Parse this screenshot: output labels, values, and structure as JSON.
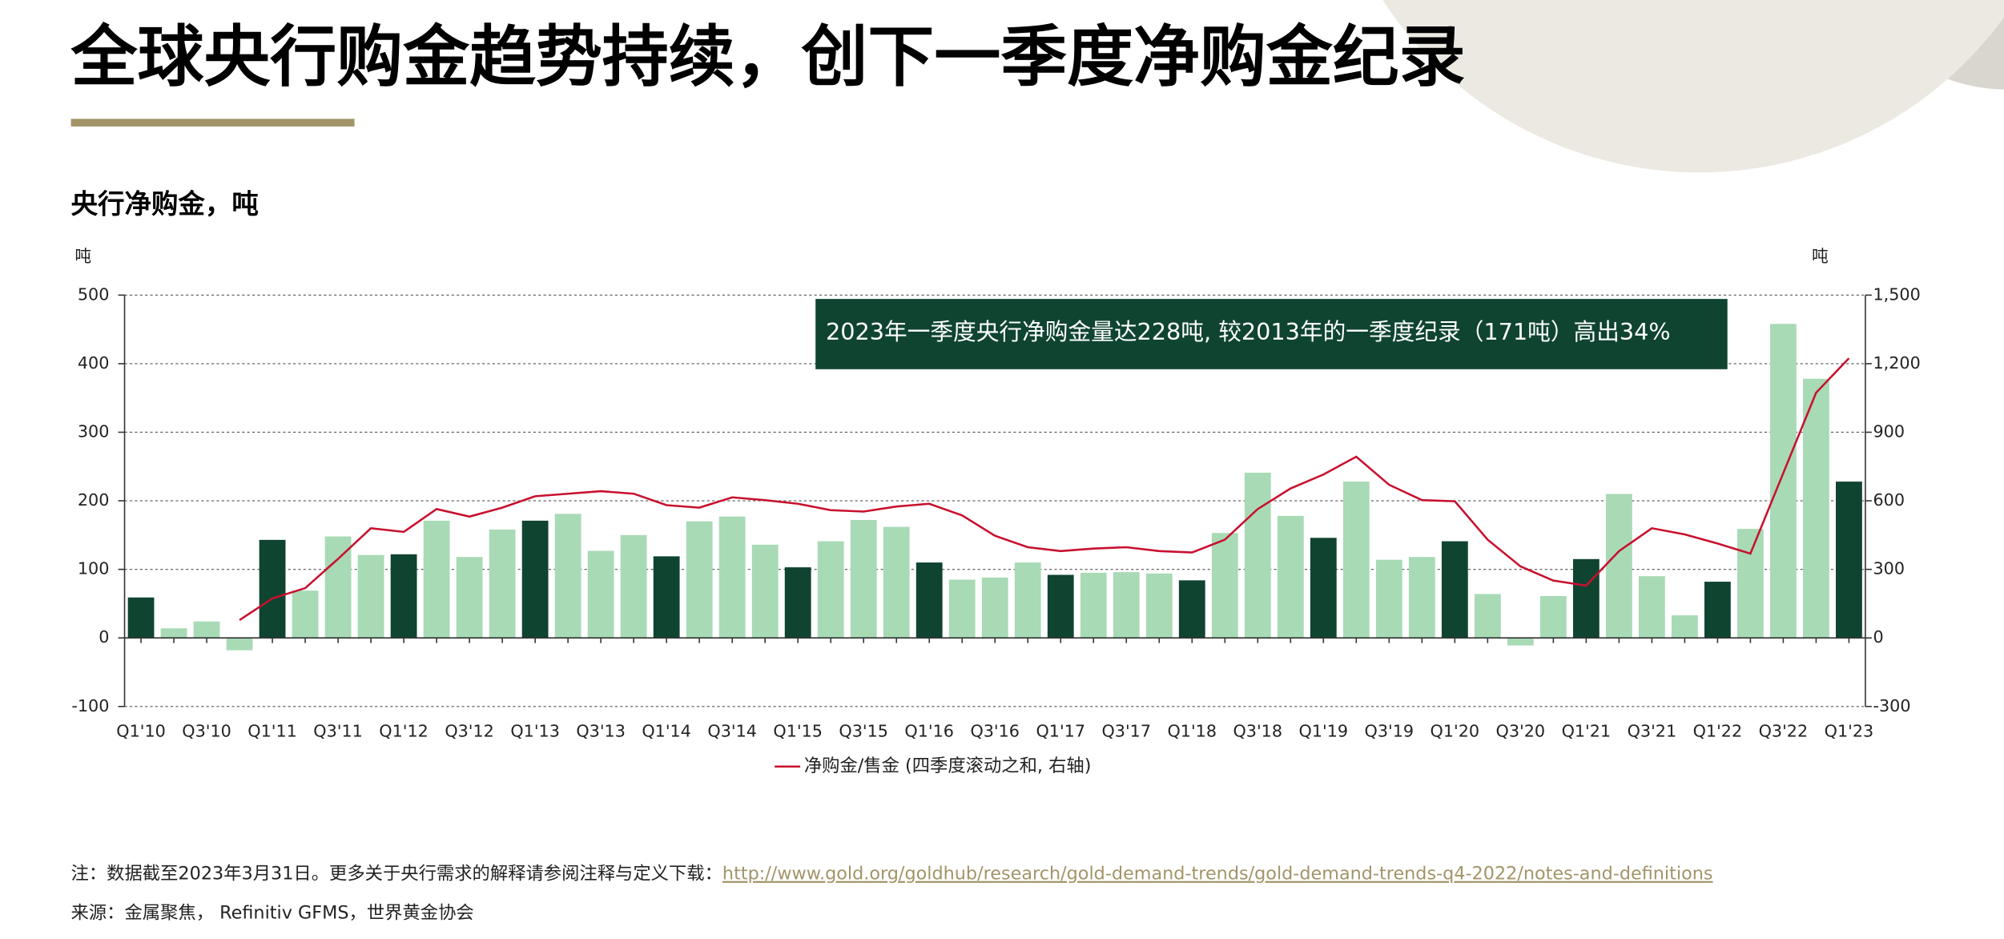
{
  "title": "全球央行购金趋势持续，创下一季度净购金纪录",
  "note": "注：数据截至2023年3月31日。更多关于央行需求的解释请参阅注释与定义下载：",
  "note_link": "http://www.gold.org/goldhub/research/gold-demand-trends/gold-demand-trends-q4-2022/notes-and-definitions",
  "source": "来源：金属聚焦， Refinitiv GFMS，世界黄金协会",
  "chart_data": {
    "type": "bar",
    "title": "央行净购金，吨",
    "y_unit": "吨",
    "y2_unit": "吨",
    "annotation": "2023年一季度央行净购金量达228吨, 较2013年的一季度纪录（171吨）高出34%",
    "categories": [
      "Q1'10",
      null,
      "Q3'10",
      null,
      "Q1'11",
      null,
      "Q3'11",
      null,
      "Q1'12",
      null,
      "Q3'12",
      null,
      "Q1'13",
      null,
      "Q3'13",
      null,
      "Q1'14",
      null,
      "Q3'14",
      null,
      "Q1'15",
      null,
      "Q3'15",
      null,
      "Q1'16",
      null,
      "Q3'16",
      null,
      "Q1'17",
      null,
      "Q3'17",
      null,
      "Q1'18",
      null,
      "Q3'18",
      null,
      "Q1'19",
      null,
      "Q3'19",
      null,
      "Q1'20",
      null,
      "Q3'20",
      null,
      "Q1'21",
      null,
      "Q3'21",
      null,
      "Q1'22",
      null,
      "Q3'22",
      null,
      "Q1'23"
    ],
    "ylim": [
      -100,
      500
    ],
    "yticks": [
      -100,
      0,
      100,
      200,
      300,
      400,
      500
    ],
    "y2lim": [
      -300,
      1500
    ],
    "y2ticks": [
      -300,
      0,
      300,
      600,
      900,
      {
        "value": 1200,
        "label": "1,200"
      },
      {
        "value": 1500,
        "label": "1,500"
      }
    ],
    "grid": true,
    "legend": "bottom",
    "series": [
      {
        "type": "bar",
        "colors": [
          "#0f4431",
          "#a8dab5",
          "#a8dab5",
          "#a8dab5",
          "#0f4431",
          "#a8dab5",
          "#a8dab5",
          "#a8dab5",
          "#0f4431",
          "#a8dab5",
          "#a8dab5",
          "#a8dab5",
          "#0f4431",
          "#a8dab5",
          "#a8dab5",
          "#a8dab5",
          "#0f4431",
          "#a8dab5",
          "#a8dab5",
          "#a8dab5",
          "#0f4431",
          "#a8dab5",
          "#a8dab5",
          "#a8dab5",
          "#0f4431",
          "#a8dab5",
          "#a8dab5",
          "#a8dab5",
          "#0f4431",
          "#a8dab5",
          "#a8dab5",
          "#a8dab5",
          "#0f4431",
          "#a8dab5",
          "#a8dab5",
          "#a8dab5",
          "#0f4431",
          "#a8dab5",
          "#a8dab5",
          "#a8dab5",
          "#0f4431",
          "#a8dab5",
          "#a8dab5",
          "#a8dab5",
          "#0f4431",
          "#a8dab5",
          "#a8dab5",
          "#a8dab5",
          "#0f4431",
          "#a8dab5",
          "#a8dab5",
          "#a8dab5",
          "#0f4431"
        ],
        "values": [
          59,
          14,
          24,
          -18,
          143,
          69,
          148,
          121,
          122,
          171,
          118,
          158,
          171,
          181,
          127,
          150,
          119,
          170,
          177,
          136,
          103,
          141,
          172,
          162,
          110,
          85,
          88,
          110,
          92,
          95,
          96,
          94,
          84,
          153,
          241,
          178,
          146,
          228,
          114,
          118,
          141,
          64,
          -11,
          61,
          115,
          210,
          90,
          33,
          82,
          159,
          458,
          378,
          228
        ]
      },
      {
        "type": "line",
        "name": "净购金/售金 (四季度滚动之和, 右轴)",
        "color": "#c8102e",
        "axis": "y2",
        "values": [
          null,
          null,
          null,
          78,
          173,
          218,
          346,
          480,
          464,
          564,
          531,
          570,
          620,
          631,
          642,
          631,
          581,
          570,
          615,
          603,
          587,
          559,
          553,
          575,
          587,
          536,
          447,
          397,
          380,
          391,
          397,
          380,
          374,
          430,
          564,
          654,
          715,
          793,
          670,
          603,
          598,
          430,
          313,
          251,
          229,
          380,
          480,
          453,
          413,
          369,
          721,
          1073,
          1224
        ]
      }
    ]
  }
}
